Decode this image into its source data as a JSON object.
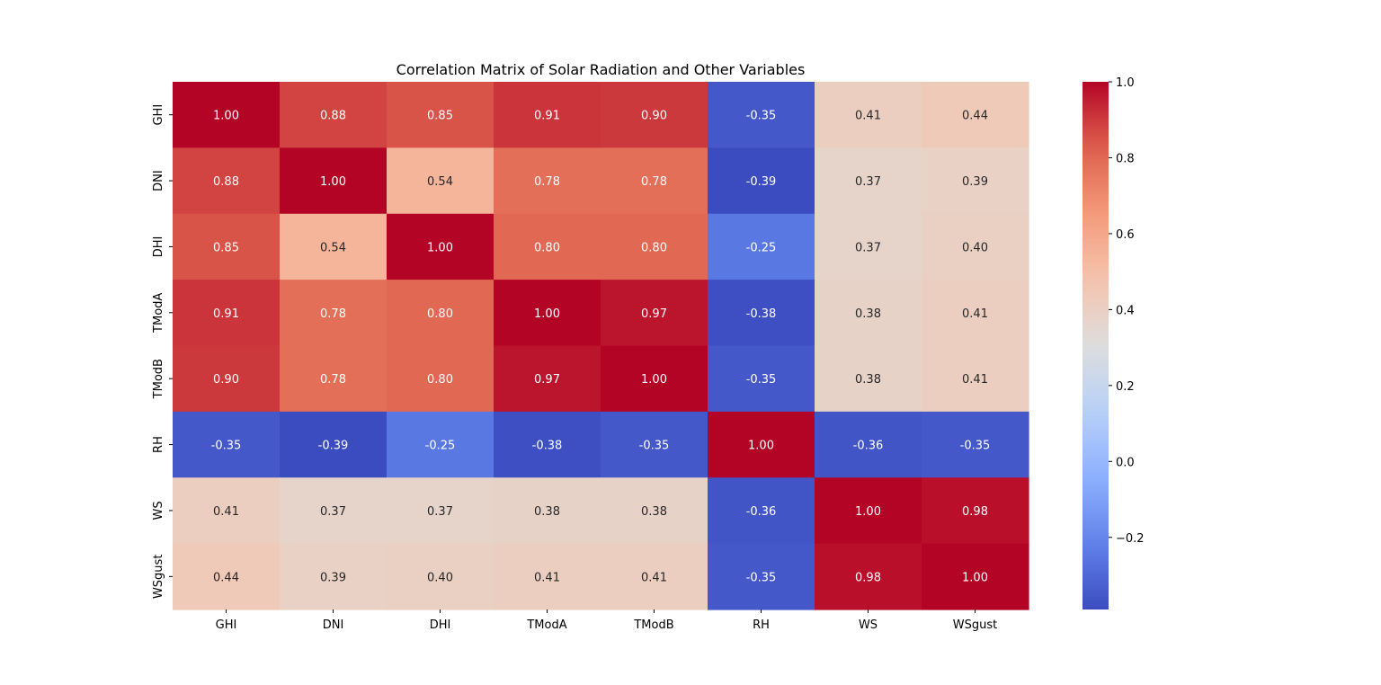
{
  "chart_data": {
    "type": "heatmap",
    "title": "Correlation Matrix of Solar Radiation and Other Variables",
    "x_labels": [
      "GHI",
      "DNI",
      "DHI",
      "TModA",
      "TModB",
      "RH",
      "WS",
      "WSgust"
    ],
    "y_labels": [
      "GHI",
      "DNI",
      "DHI",
      "TModA",
      "TModB",
      "RH",
      "WS",
      "WSgust"
    ],
    "values": [
      [
        1.0,
        0.88,
        0.85,
        0.91,
        0.9,
        -0.35,
        0.41,
        0.44
      ],
      [
        0.88,
        1.0,
        0.54,
        0.78,
        0.78,
        -0.39,
        0.37,
        0.39
      ],
      [
        0.85,
        0.54,
        1.0,
        0.8,
        0.8,
        -0.25,
        0.37,
        0.4
      ],
      [
        0.91,
        0.78,
        0.8,
        1.0,
        0.97,
        -0.38,
        0.38,
        0.41
      ],
      [
        0.9,
        0.78,
        0.8,
        0.97,
        1.0,
        -0.35,
        0.38,
        0.41
      ],
      [
        -0.35,
        -0.39,
        -0.25,
        -0.38,
        -0.35,
        1.0,
        -0.36,
        -0.35
      ],
      [
        0.41,
        0.37,
        0.37,
        0.38,
        0.38,
        -0.36,
        1.0,
        0.98
      ],
      [
        0.44,
        0.39,
        0.4,
        0.41,
        0.41,
        -0.35,
        0.98,
        1.0
      ]
    ],
    "annotation_format": "0.00",
    "colormap": "coolwarm",
    "vmin": -0.39,
    "vmax": 1.0,
    "colorbar_ticks": [
      1.0,
      0.8,
      0.6,
      0.4,
      0.2,
      0.0,
      -0.2
    ],
    "colorbar_tick_labels": [
      "1.0",
      "0.8",
      "0.6",
      "0.4",
      "0.2",
      "0.0",
      "−0.2"
    ],
    "grid": false,
    "legend": "colorbar-right"
  }
}
